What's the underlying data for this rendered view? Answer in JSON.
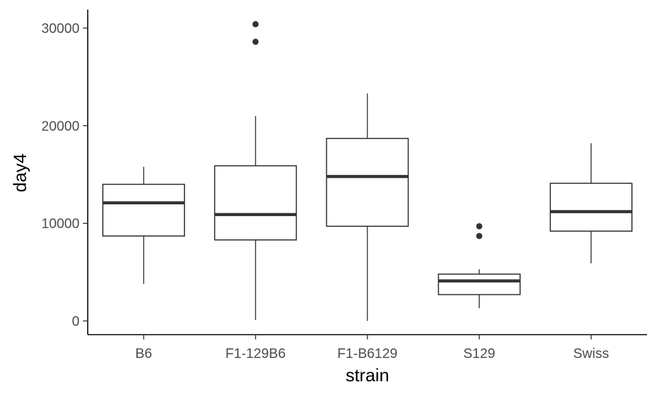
{
  "chart_data": {
    "type": "boxplot",
    "xlabel": "strain",
    "ylabel": "day4",
    "ylim": [
      -1500,
      32000
    ],
    "yticks": [
      0,
      10000,
      20000,
      30000
    ],
    "yticklabels": [
      "0",
      "10000",
      "20000",
      "30000"
    ],
    "grid": false,
    "legend": "none",
    "categories": [
      "B6",
      "F1-129B6",
      "F1-B6129",
      "S129",
      "Swiss"
    ],
    "boxes": [
      {
        "category": "B6",
        "whisker_low": 3800,
        "q1": 8700,
        "median": 12100,
        "q3": 14000,
        "whisker_high": 15800,
        "outliers": []
      },
      {
        "category": "F1-129B6",
        "whisker_low": 100,
        "q1": 8300,
        "median": 10900,
        "q3": 15900,
        "whisker_high": 21000,
        "outliers": [
          28600,
          30400
        ]
      },
      {
        "category": "F1-B6129",
        "whisker_low": 0,
        "q1": 9700,
        "median": 14800,
        "q3": 18700,
        "whisker_high": 23300,
        "outliers": []
      },
      {
        "category": "S129",
        "whisker_low": 1300,
        "q1": 2700,
        "median": 4100,
        "q3": 4800,
        "whisker_high": 5300,
        "outliers": [
          8700,
          9700
        ]
      },
      {
        "category": "Swiss",
        "whisker_low": 5900,
        "q1": 9200,
        "median": 11200,
        "q3": 14100,
        "whisker_high": 18200,
        "outliers": []
      }
    ],
    "colors": {
      "box_stroke": "#333333",
      "axis": "#000000",
      "tick_label": "#4d4d4d",
      "outlier": "#333333"
    }
  }
}
